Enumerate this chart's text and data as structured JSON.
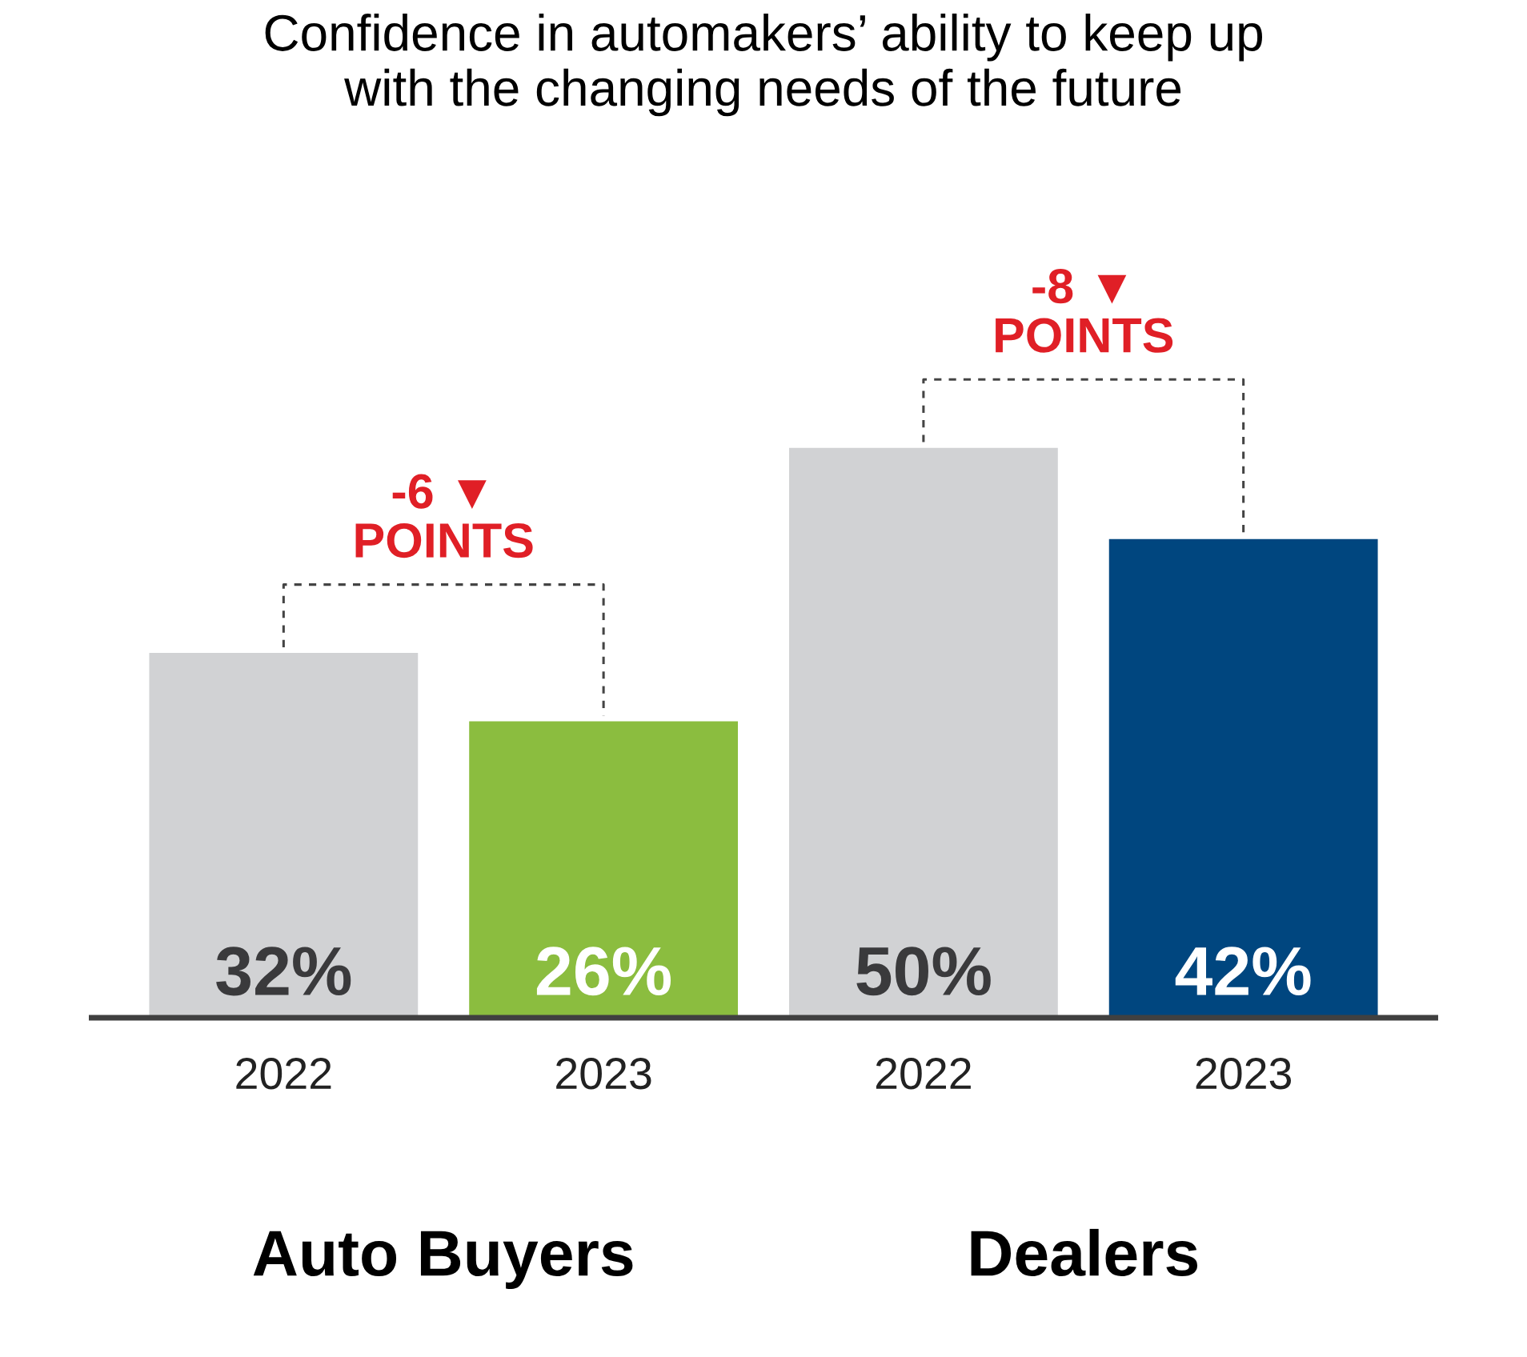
{
  "chart_data": {
    "type": "bar",
    "title": "Confidence in automakers’ ability to keep up\nwith the changing needs of the future",
    "categories": [
      "2022",
      "2023",
      "2022",
      "2023"
    ],
    "values": [
      32,
      26,
      50,
      42
    ],
    "colors": [
      "#d1d2d4",
      "#8bbd3f",
      "#d1d2d4",
      "#00467f"
    ],
    "value_labels": [
      "32%",
      "26%",
      "50%",
      "42%"
    ],
    "grid": false,
    "legend": false,
    "annotations": [
      "-6 ▼\nPOINTS",
      "-8 ▼\nPOINTS",
      "Auto Buyers",
      "Dealers"
    ]
  }
}
